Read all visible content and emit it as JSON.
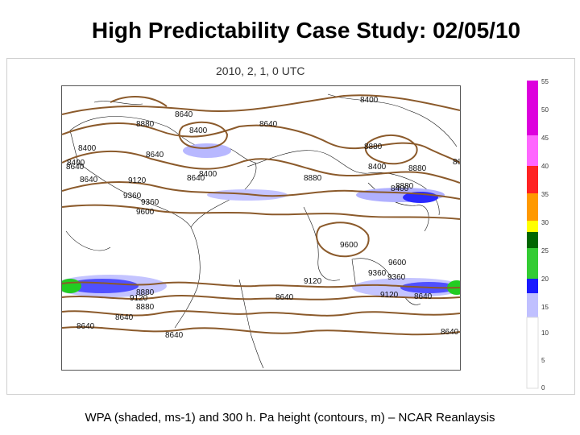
{
  "slide": {
    "title": "High Predictability Case Study: 02/05/10",
    "caption": "WPA (shaded, ms-1) and 300 h. Pa height (contours, m) – NCAR Reanlaysis"
  },
  "map": {
    "title": "2010, 2, 1, 0 UTC",
    "contour_labels": [
      "8400",
      "8640",
      "8880",
      "8400",
      "8640",
      "8400",
      "8640",
      "8880",
      "8400",
      "8880",
      "8640",
      "8400",
      "8640",
      "9120",
      "8640",
      "8400",
      "8880",
      "8400",
      "8880",
      "8640",
      "9360",
      "9360",
      "9600",
      "9600",
      "9120",
      "9600",
      "9360",
      "9360",
      "9120",
      "8640",
      "8880",
      "9120",
      "8880",
      "8640",
      "8640",
      "8640",
      "8640",
      "8640"
    ]
  },
  "colorbar": {
    "tick_labels": [
      "55",
      "50",
      "45",
      "40",
      "35",
      "30",
      "25",
      "20",
      "15",
      "10",
      "5",
      "0"
    ],
    "colors": [
      "#e000e0",
      "#f050f0",
      "#ff0000",
      "#ffa500",
      "#ffff00",
      "#00aa00",
      "#33dd33",
      "#1a1aff",
      "#b0b0ff",
      "#ffffff"
    ]
  }
}
